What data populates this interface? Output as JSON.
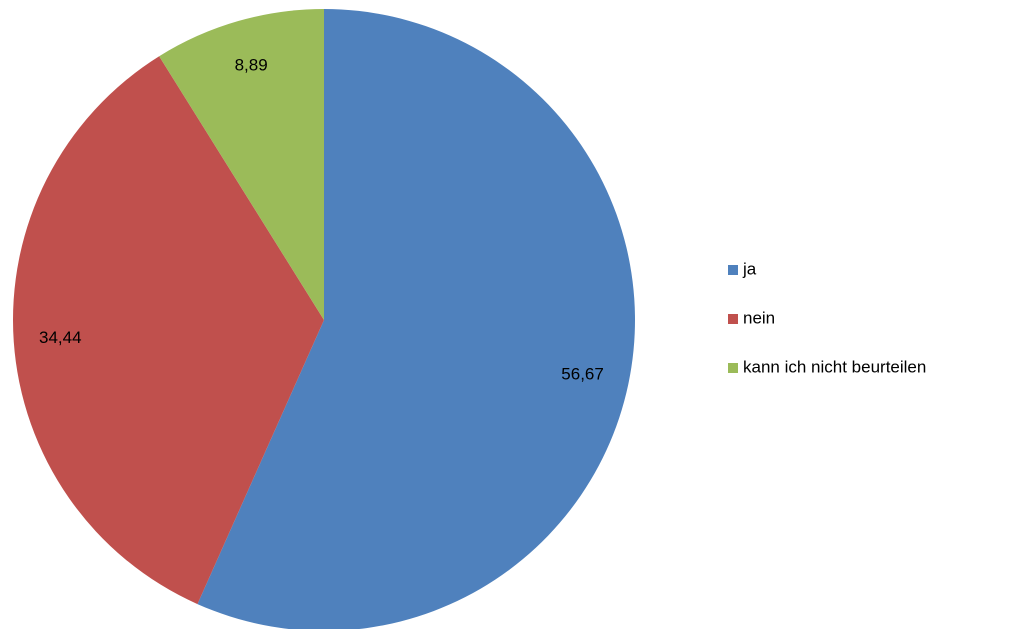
{
  "chart_data": {
    "type": "pie",
    "categories": [
      "ja",
      "nein",
      "kann ich nicht beurteilen"
    ],
    "values": [
      56.67,
      34.44,
      8.89
    ],
    "value_labels": [
      "56,67",
      "34,44",
      "8,89"
    ],
    "colors": [
      "#4f81bd",
      "#c0504d",
      "#9bbb59"
    ],
    "legend": "right"
  }
}
